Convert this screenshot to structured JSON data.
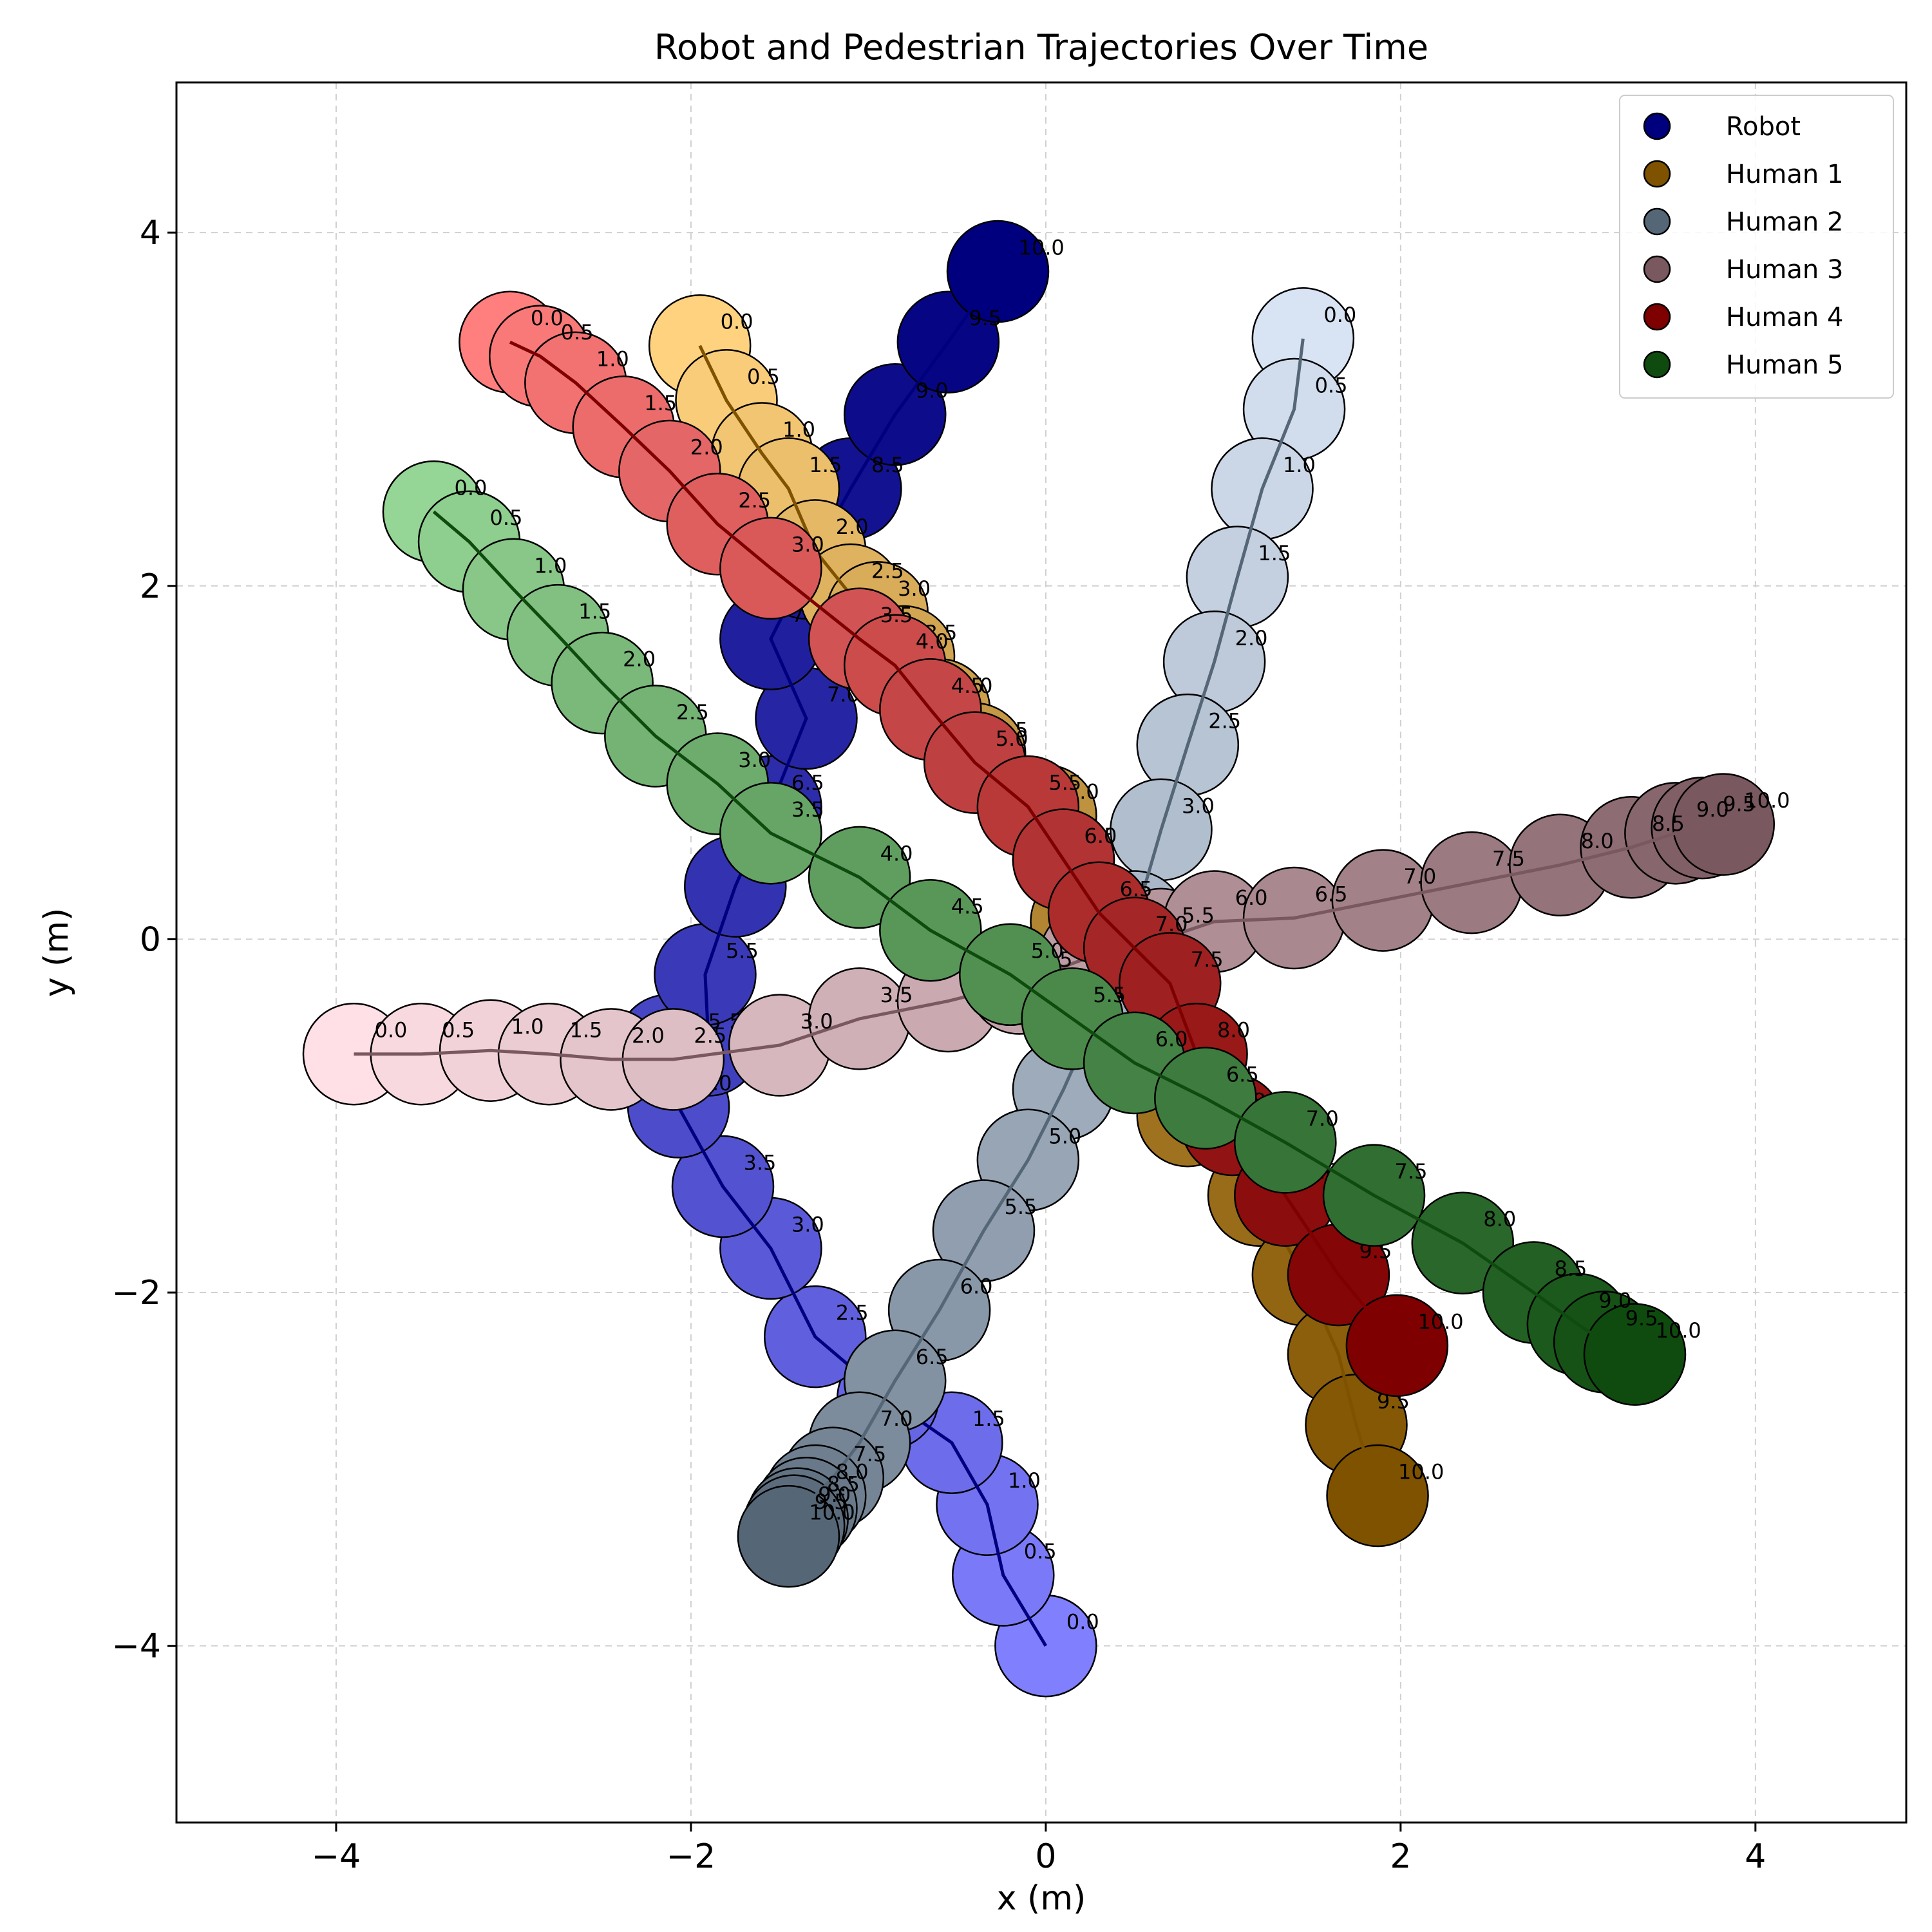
{
  "chart_data": {
    "type": "scatter",
    "title": "Robot and Pedestrian Trajectories Over Time",
    "xlabel": "x (m)",
    "ylabel": "y (m)",
    "xlim": [
      -4.9,
      4.85
    ],
    "ylim": [
      -5.0,
      4.85
    ],
    "xticks": [
      -4,
      -2,
      0,
      2,
      4
    ],
    "yticks": [
      -4,
      -2,
      0,
      2,
      4
    ],
    "xtick_labels": [
      "−4",
      "−2",
      "0",
      "2",
      "4"
    ],
    "ytick_labels": [
      "−4",
      "−2",
      "0",
      "2",
      "4"
    ],
    "grid": true,
    "legend_position": "top-right",
    "times": [
      "0.0",
      "0.5",
      "1.0",
      "1.5",
      "2.0",
      "2.5",
      "3.0",
      "3.5",
      "4.0",
      "4.5",
      "5.0",
      "5.5",
      "6.0",
      "6.5",
      "7.0",
      "7.5",
      "8.0",
      "8.5",
      "9.0",
      "9.5",
      "10.0"
    ],
    "series": [
      {
        "name": "Robot",
        "color_light": "#8080ff",
        "color_dark": "#00007f",
        "x": [
          0.0,
          -0.24,
          -0.33,
          -0.53,
          -0.89,
          -1.3,
          -1.55,
          -1.82,
          -2.07,
          -2.13,
          -1.9,
          -1.92,
          -1.75,
          -1.55,
          -1.35,
          -1.55,
          -1.35,
          -1.1,
          -0.85,
          -0.55,
          -0.27
        ],
        "y": [
          -4.0,
          -3.6,
          -3.2,
          -2.85,
          -2.6,
          -2.25,
          -1.75,
          -1.4,
          -0.95,
          -0.6,
          -0.6,
          -0.2,
          0.3,
          0.75,
          1.25,
          1.7,
          2.1,
          2.55,
          2.97,
          3.38,
          3.78
        ]
      },
      {
        "name": "Human 1",
        "color_light": "#ffd27f",
        "color_dark": "#7f5200",
        "x": [
          -1.95,
          -1.8,
          -1.6,
          -1.45,
          -1.3,
          -1.1,
          -0.95,
          -0.8,
          -0.6,
          -0.4,
          0.0,
          0.1,
          0.2,
          0.35,
          0.55,
          0.8,
          1.2,
          1.45,
          1.65,
          1.75,
          1.87
        ],
        "y": [
          3.36,
          3.05,
          2.75,
          2.55,
          2.2,
          1.95,
          1.85,
          1.6,
          1.3,
          1.05,
          0.7,
          0.45,
          0.1,
          -0.3,
          -0.6,
          -1.0,
          -1.45,
          -1.9,
          -2.35,
          -2.75,
          -3.15
        ]
      },
      {
        "name": "Human 2",
        "color_light": "#d8e3f3",
        "color_dark": "#556677",
        "x": [
          1.45,
          1.4,
          1.22,
          1.08,
          0.95,
          0.8,
          0.65,
          0.5,
          0.3,
          0.1,
          -0.1,
          -0.35,
          -0.6,
          -0.85,
          -1.05,
          -1.2,
          -1.3,
          -1.35,
          -1.4,
          -1.42,
          -1.45
        ],
        "y": [
          3.4,
          3.0,
          2.55,
          2.05,
          1.57,
          1.1,
          0.62,
          0.1,
          -0.4,
          -0.85,
          -1.25,
          -1.65,
          -2.1,
          -2.5,
          -2.85,
          -3.05,
          -3.15,
          -3.22,
          -3.28,
          -3.32,
          -3.38
        ]
      },
      {
        "name": "Human 3",
        "color_light": "#ffe0e6",
        "color_dark": "#7a5860",
        "x": [
          -3.9,
          -3.52,
          -3.13,
          -2.8,
          -2.45,
          -2.1,
          -1.5,
          -1.05,
          -0.55,
          -0.15,
          0.25,
          0.65,
          0.95,
          1.4,
          1.9,
          2.4,
          2.9,
          3.3,
          3.55,
          3.7,
          3.82
        ],
        "y": [
          -0.65,
          -0.65,
          -0.63,
          -0.65,
          -0.68,
          -0.68,
          -0.6,
          -0.45,
          -0.35,
          -0.25,
          -0.1,
          0.0,
          0.1,
          0.12,
          0.22,
          0.32,
          0.42,
          0.52,
          0.6,
          0.63,
          0.65
        ]
      },
      {
        "name": "Human 4",
        "color_light": "#ff7f7f",
        "color_dark": "#7f0000",
        "x": [
          -3.02,
          -2.85,
          -2.65,
          -2.38,
          -2.12,
          -1.85,
          -1.55,
          -1.05,
          -0.85,
          -0.65,
          -0.4,
          -0.1,
          0.1,
          0.3,
          0.5,
          0.7,
          0.85,
          1.05,
          1.35,
          1.65,
          1.98
        ],
        "y": [
          3.38,
          3.3,
          3.15,
          2.9,
          2.65,
          2.35,
          2.1,
          1.7,
          1.55,
          1.3,
          1.0,
          0.75,
          0.45,
          0.15,
          -0.05,
          -0.25,
          -0.65,
          -1.05,
          -1.45,
          -1.9,
          -2.3
        ]
      },
      {
        "name": "Human 5",
        "color_light": "#95d595",
        "color_dark": "#0f4b0f",
        "x": [
          -3.45,
          -3.25,
          -3.0,
          -2.75,
          -2.5,
          -2.2,
          -1.85,
          -1.55,
          -1.05,
          -0.65,
          -0.2,
          0.15,
          0.5,
          0.9,
          1.35,
          1.85,
          2.35,
          2.75,
          3.0,
          3.15,
          3.32
        ],
        "y": [
          2.42,
          2.25,
          1.98,
          1.72,
          1.45,
          1.15,
          0.88,
          0.6,
          0.35,
          0.05,
          -0.2,
          -0.45,
          -0.7,
          -0.9,
          -1.15,
          -1.45,
          -1.72,
          -2.0,
          -2.18,
          -2.28,
          -2.35
        ]
      }
    ],
    "legend": [
      {
        "name": "Robot",
        "color": "#00007f"
      },
      {
        "name": "Human 1",
        "color": "#7f5200"
      },
      {
        "name": "Human 2",
        "color": "#556677"
      },
      {
        "name": "Human 3",
        "color": "#7a5860"
      },
      {
        "name": "Human 4",
        "color": "#7f0000"
      },
      {
        "name": "Human 5",
        "color": "#0f4b0f"
      }
    ]
  }
}
